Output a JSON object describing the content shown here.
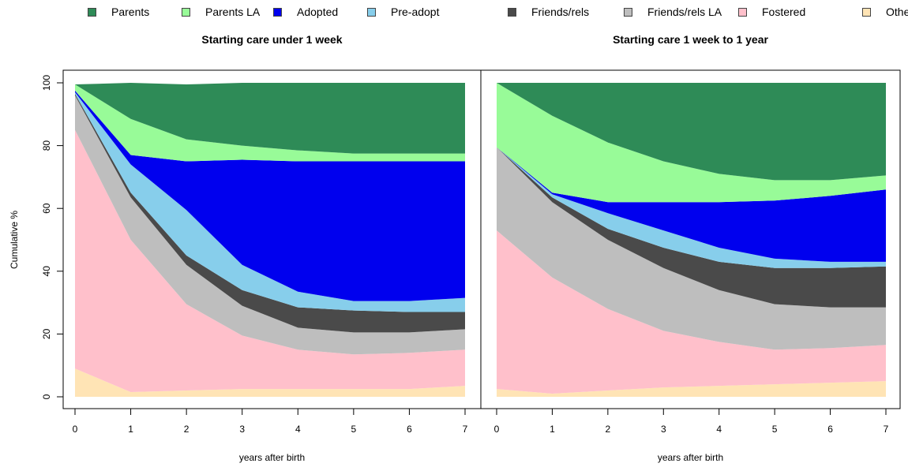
{
  "legend": [
    {
      "name": "Parents",
      "color": "#2e8b57"
    },
    {
      "name": "Parents LA",
      "color": "#98fb98"
    },
    {
      "name": "Adopted",
      "color": "#0000ee"
    },
    {
      "name": "Pre-adopt",
      "color": "#87ceeb"
    },
    {
      "name": "Friends/rels",
      "color": "#4a4a4a"
    },
    {
      "name": "Friends/rels LA",
      "color": "#bebebe"
    },
    {
      "name": "Fostered",
      "color": "#ffc0cb"
    },
    {
      "name": "Other",
      "color": "#ffe4b5"
    }
  ],
  "chart_data": [
    {
      "type": "area",
      "stacked": true,
      "title": "Starting care under 1 week",
      "xlabel": "years after birth",
      "ylabel": "Cumulative %",
      "x": [
        0,
        1,
        2,
        3,
        4,
        5,
        6,
        7
      ],
      "xticks": [
        "0",
        "1",
        "2",
        "3",
        "4",
        "5",
        "6",
        "7"
      ],
      "yticks": [
        "0",
        "20",
        "40",
        "60",
        "80",
        "100"
      ],
      "ylim": [
        0,
        100
      ],
      "xlim": [
        0,
        7
      ],
      "series": [
        {
          "name": "Other",
          "values": [
            9,
            1.5,
            2,
            2.5,
            2.5,
            2.5,
            2.5,
            3.5
          ]
        },
        {
          "name": "Fostered",
          "values": [
            76,
            48.5,
            27.5,
            17,
            12.5,
            11,
            11.5,
            11.5
          ]
        },
        {
          "name": "Friends/rels LA",
          "values": [
            11,
            13.5,
            12.5,
            9.5,
            7,
            7,
            6.5,
            6.5
          ]
        },
        {
          "name": "Friends/rels",
          "values": [
            0.5,
            1.5,
            3,
            5,
            6.5,
            7,
            6.5,
            5.5
          ]
        },
        {
          "name": "Pre-adopt",
          "values": [
            0.5,
            9,
            14.5,
            8,
            5,
            3,
            3.5,
            4.5
          ]
        },
        {
          "name": "Adopted",
          "values": [
            0.5,
            3,
            15.5,
            33.5,
            41.5,
            44.5,
            44.5,
            43.5
          ]
        },
        {
          "name": "Parents LA",
          "values": [
            2,
            11.5,
            7,
            4.5,
            3.5,
            2.5,
            2.5,
            2.5
          ]
        },
        {
          "name": "Parents",
          "values": [
            0,
            11.5,
            17.5,
            20,
            21.5,
            22.5,
            22.5,
            22.5
          ]
        }
      ]
    },
    {
      "type": "area",
      "stacked": true,
      "title": "Starting care 1 week to 1 year",
      "xlabel": "years after birth",
      "ylabel": "",
      "x": [
        0,
        1,
        2,
        3,
        4,
        5,
        6,
        7
      ],
      "xticks": [
        "0",
        "1",
        "2",
        "3",
        "4",
        "5",
        "6",
        "7"
      ],
      "yticks": [],
      "ylim": [
        0,
        100
      ],
      "xlim": [
        0,
        7
      ],
      "series": [
        {
          "name": "Other",
          "values": [
            2.5,
            1,
            2,
            3,
            3.5,
            4,
            4.5,
            5
          ]
        },
        {
          "name": "Fostered",
          "values": [
            50.5,
            37,
            26,
            18,
            14,
            11,
            11,
            11.5
          ]
        },
        {
          "name": "Friends/rels LA",
          "values": [
            26.5,
            24,
            22,
            20,
            16.5,
            14.5,
            13,
            12
          ]
        },
        {
          "name": "Friends/rels",
          "values": [
            0,
            1.5,
            3.5,
            6.5,
            9,
            11.5,
            12.5,
            13
          ]
        },
        {
          "name": "Pre-adopt",
          "values": [
            0,
            1,
            5,
            5.5,
            4.5,
            3,
            2,
            1.5
          ]
        },
        {
          "name": "Adopted",
          "values": [
            0,
            0.5,
            3.5,
            9,
            14.5,
            18.5,
            21,
            23
          ]
        },
        {
          "name": "Parents LA",
          "values": [
            20.5,
            24.5,
            19,
            13,
            9,
            6.5,
            5,
            4.5
          ]
        },
        {
          "name": "Parents",
          "values": [
            0,
            10.5,
            19,
            25,
            29,
            31,
            31,
            29.5
          ]
        }
      ]
    }
  ]
}
